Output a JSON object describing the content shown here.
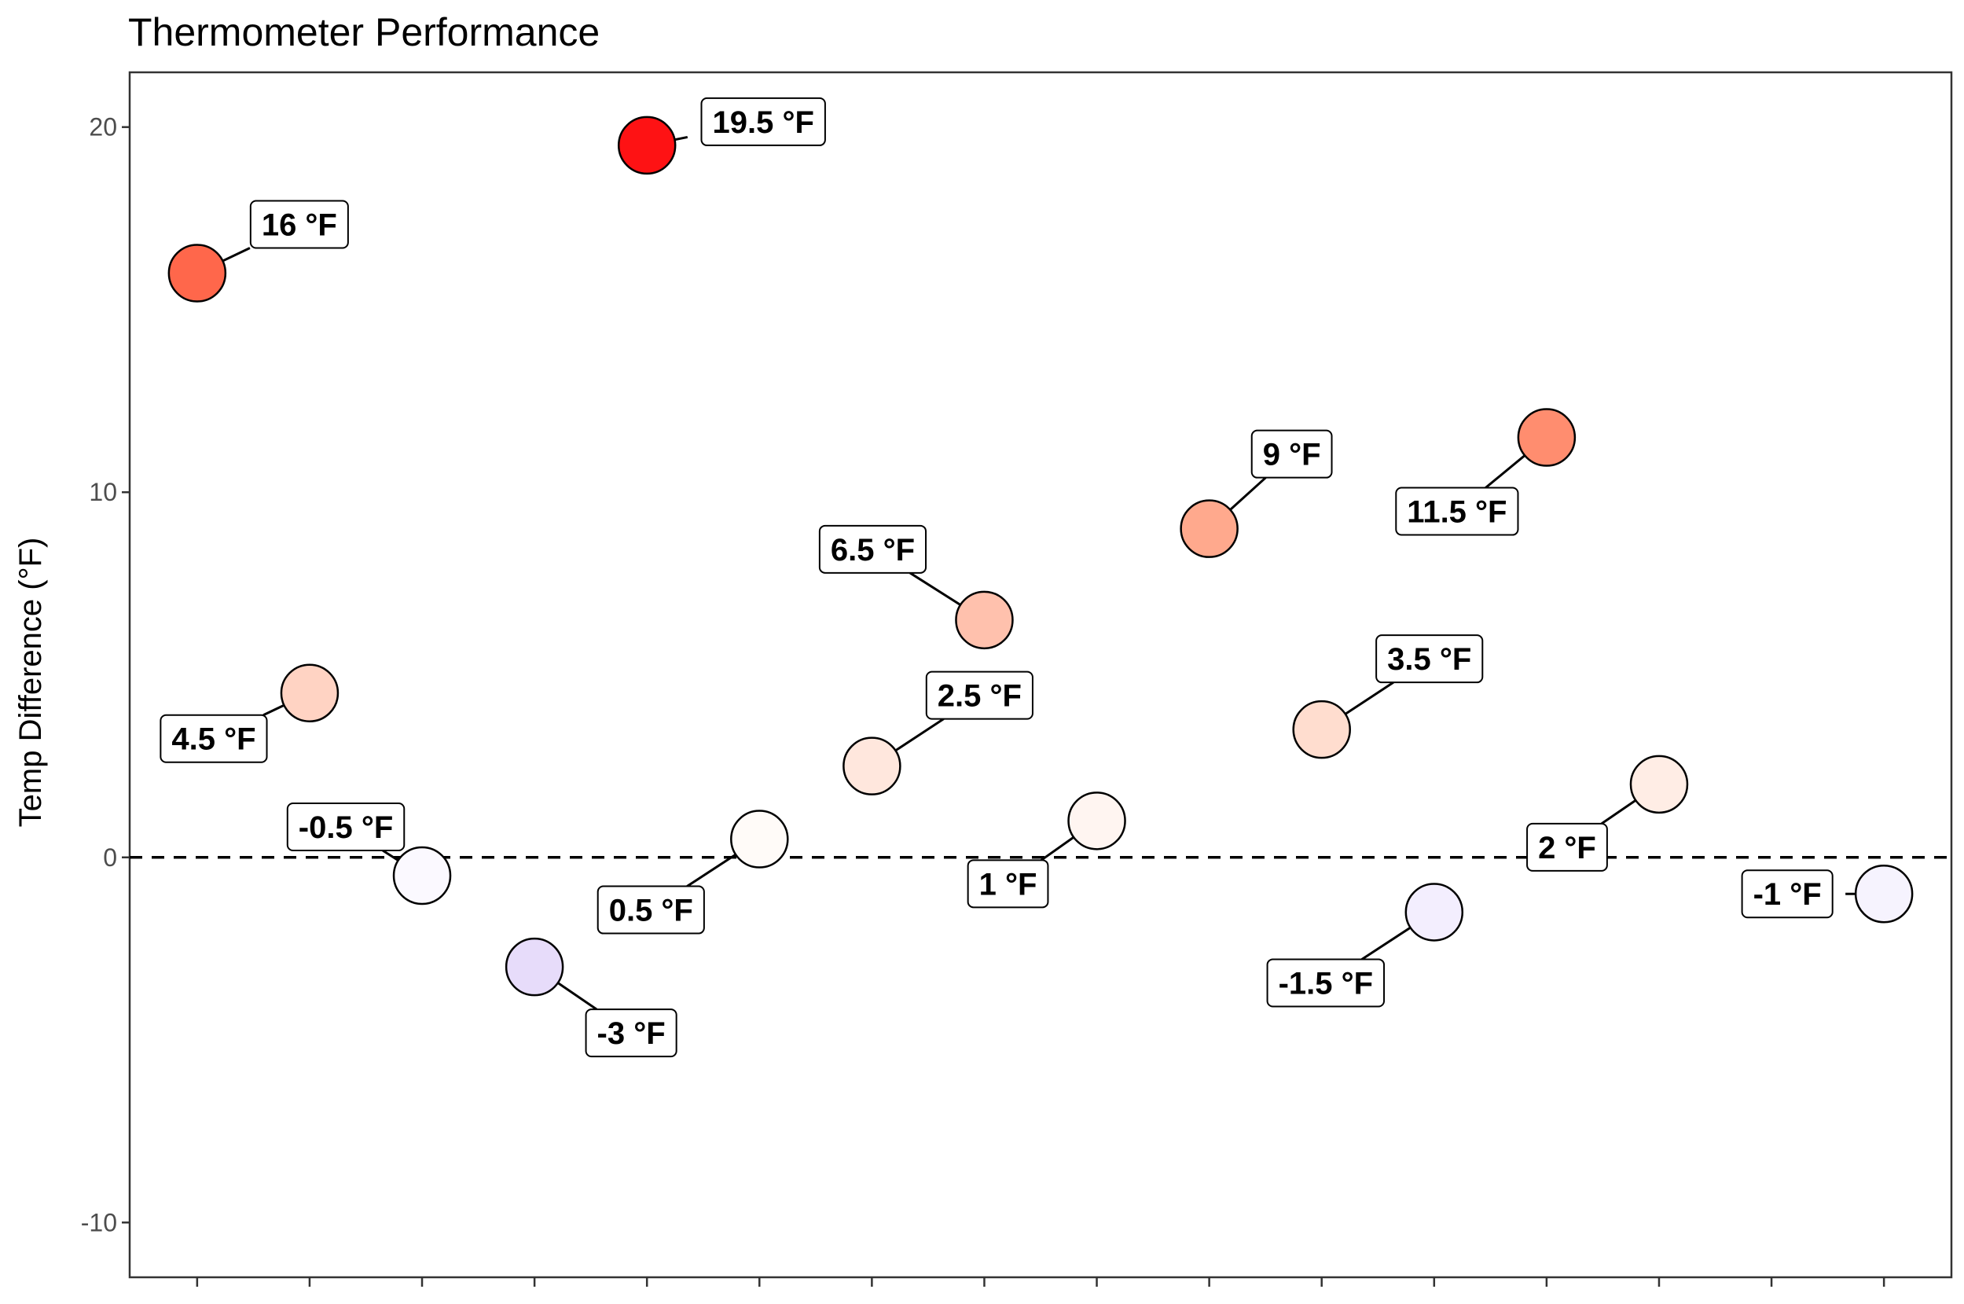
{
  "chart_data": {
    "type": "scatter",
    "title": "Thermometer Performance",
    "xlabel": "",
    "ylabel": "Temp Difference (°F)",
    "ylim": [
      -11.5,
      21.5
    ],
    "yticks": [
      -10,
      0,
      10,
      20
    ],
    "xlim": [
      0.4,
      16.6
    ],
    "grid": false,
    "reference_line": {
      "y": 0,
      "style": "dashed"
    },
    "color_scale": {
      "low": "#d8c8f4",
      "mid": "#ffffff",
      "high": "#ff0000"
    },
    "points": [
      {
        "x": 1,
        "y": 16,
        "label": "16 °F",
        "fill": "#ff674b"
      },
      {
        "x": 2,
        "y": 4.5,
        "label": "4.5 °F",
        "fill": "#ffd3c3"
      },
      {
        "x": 3,
        "y": -0.5,
        "label": "-0.5 °F",
        "fill": "#fbf9ff"
      },
      {
        "x": 4,
        "y": -3,
        "label": "-3 °F",
        "fill": "#e7dcfa"
      },
      {
        "x": 5,
        "y": 19.5,
        "label": "19.5 °F",
        "fill": "#fe1214"
      },
      {
        "x": 6,
        "y": 0.5,
        "label": "0.5 °F",
        "fill": "#fffbf8"
      },
      {
        "x": 7,
        "y": 2.5,
        "label": "2.5 °F",
        "fill": "#ffe7dd"
      },
      {
        "x": 8,
        "y": 6.5,
        "label": "6.5 °F",
        "fill": "#ffc1ad"
      },
      {
        "x": 9,
        "y": 1,
        "label": "1 °F",
        "fill": "#fff5f1"
      },
      {
        "x": 10,
        "y": 9,
        "label": "9 °F",
        "fill": "#ffa98d"
      },
      {
        "x": 11,
        "y": 3.5,
        "label": "3.5 °F",
        "fill": "#ffddcf"
      },
      {
        "x": 12,
        "y": -1.5,
        "label": "-1.5 °F",
        "fill": "#f3eefe"
      },
      {
        "x": 13,
        "y": 11.5,
        "label": "11.5 °F",
        "fill": "#ff8d6f"
      },
      {
        "x": 14,
        "y": 2,
        "label": "2 °F",
        "fill": "#ffede5"
      },
      {
        "x": 16,
        "y": -1,
        "label": "-1 °F",
        "fill": "#f6f3fe"
      }
    ]
  }
}
